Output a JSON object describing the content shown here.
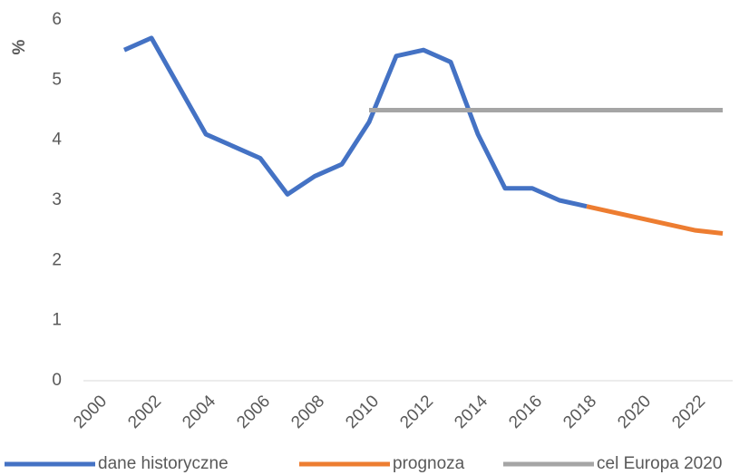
{
  "chart_data": {
    "type": "line",
    "y_label": "%",
    "xlim": [
      1999.5,
      2023.5
    ],
    "xticks": [
      2000,
      2002,
      2004,
      2006,
      2008,
      2010,
      2012,
      2014,
      2016,
      2018,
      2020,
      2022
    ],
    "ylim": [
      0,
      6
    ],
    "yticks": [
      0,
      1,
      2,
      3,
      4,
      5,
      6
    ],
    "grid": false,
    "legend": "bottom",
    "series": [
      {
        "name": "dane historyczne",
        "color": "#4472c4",
        "x": [
          2001,
          2002,
          2003,
          2004,
          2005,
          2006,
          2007,
          2008,
          2009,
          2010,
          2011,
          2012,
          2013,
          2014,
          2015,
          2016,
          2017,
          2018
        ],
        "values": [
          5.5,
          5.7,
          4.9,
          4.1,
          3.9,
          3.7,
          3.1,
          3.4,
          3.6,
          4.3,
          5.4,
          5.5,
          5.3,
          4.1,
          3.2,
          3.2,
          3.0,
          2.9
        ]
      },
      {
        "name": "prognoza",
        "color": "#ed7d31",
        "x": [
          2018,
          2019,
          2020,
          2021,
          2022,
          2023
        ],
        "values": [
          2.9,
          2.8,
          2.7,
          2.6,
          2.5,
          2.45
        ]
      },
      {
        "name": "cel Europa 2020",
        "color": "#a5a5a5",
        "x": [
          2010,
          2011,
          2012,
          2013,
          2014,
          2015,
          2016,
          2017,
          2018,
          2019,
          2020,
          2021,
          2022,
          2023
        ],
        "values": [
          4.5,
          4.5,
          4.5,
          4.5,
          4.5,
          4.5,
          4.5,
          4.5,
          4.5,
          4.5,
          4.5,
          4.5,
          4.5,
          4.5
        ]
      }
    ]
  }
}
